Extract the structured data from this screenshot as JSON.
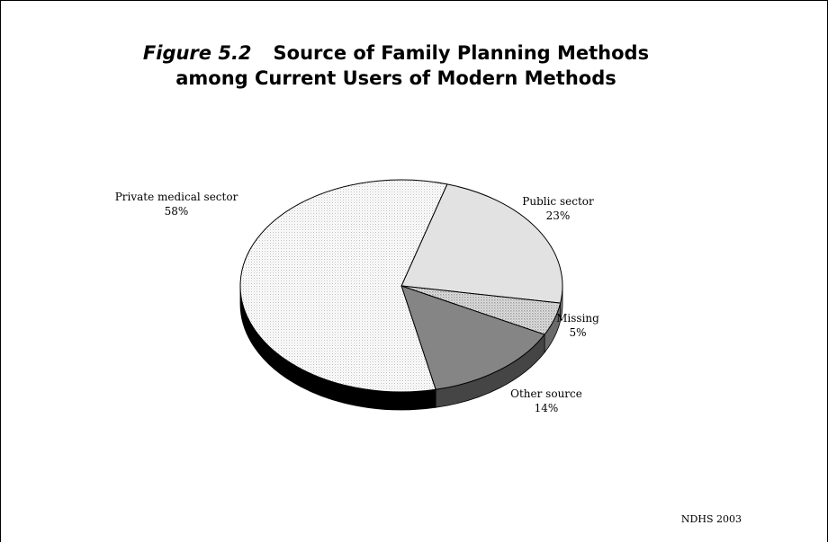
{
  "title": {
    "figure_label": "Figure 5.2",
    "line1": "Source of Family Planning Methods",
    "line2": "among Current Users of Modern Methods"
  },
  "source_note": "NDHS 2003",
  "chart_data": {
    "type": "pie",
    "title": "Figure 5.2 Source of Family Planning Methods among Current Users of Modern Methods",
    "slices": [
      {
        "label": "Public sector",
        "value": 23,
        "value_label": "23%",
        "color": "#e0e0e0",
        "side": "#7a7a7a"
      },
      {
        "label": "Missing",
        "value": 5,
        "value_label": "5%",
        "color": "#bdbdbd",
        "side": "#5a5a5a"
      },
      {
        "label": "Other source",
        "value": 14,
        "value_label": "14%",
        "color": "#808080",
        "side": "#3c3c3c"
      },
      {
        "label": "Private medical sector",
        "value": 58,
        "value_label": "58%",
        "color": "#f5f5f5",
        "side": "#000000"
      }
    ],
    "legend": "none",
    "style": "3d-tilted"
  }
}
